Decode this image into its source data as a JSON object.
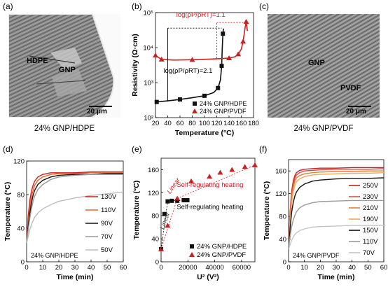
{
  "panels": {
    "a": {
      "label": "(a)",
      "scale_bar": "20 μm",
      "tags": [
        "HDPE",
        "GNP"
      ],
      "caption": "24% GNP/HDPE"
    },
    "b": {
      "label": "(b)"
    },
    "c": {
      "label": "(c)",
      "scale_bar": "20 μm",
      "tags": [
        "GNP",
        "PVDF"
      ],
      "caption": "24% GNP/PVDF"
    },
    "d": {
      "label": "(d)"
    },
    "e": {
      "label": "(e)"
    },
    "f": {
      "label": "(f)"
    }
  },
  "colors": {
    "black": "#111111",
    "red": "#cc1f1f"
  },
  "chart_data": [
    {
      "id": "b",
      "type": "line",
      "xlabel": "Temperature (°C)",
      "ylabel": "Resistivity (Ω·cm)",
      "xlim": [
        20,
        180
      ],
      "xticks": [
        20,
        40,
        60,
        80,
        100,
        120,
        140,
        160,
        180
      ],
      "ylim": [
        100,
        100000
      ],
      "yscale": "log",
      "yticks": [
        "10²",
        "10³",
        "10⁴",
        "10⁵"
      ],
      "annotations": [
        "log(ρP/ρRT)=1.1",
        "log(ρP/ρRT)=2.1"
      ],
      "legend": "bottom-right",
      "series": [
        {
          "name": "24% GNP/HDPE",
          "color": "#111111",
          "marker": "square",
          "x": [
            22,
            40,
            60,
            80,
            100,
            115,
            122,
            126,
            128,
            129,
            130,
            131
          ],
          "y": [
            280,
            300,
            330,
            370,
            420,
            520,
            700,
            1200,
            3000,
            10000,
            25000,
            35000
          ]
        },
        {
          "name": "24% GNP/PVDF",
          "color": "#cc1f1f",
          "marker": "triangle",
          "x": [
            20,
            25,
            30,
            50,
            80,
            110,
            140,
            150,
            155,
            160,
            163,
            166,
            168,
            170
          ],
          "y": [
            6000,
            5200,
            4600,
            4400,
            4500,
            4700,
            5000,
            5500,
            6500,
            9000,
            15000,
            35000,
            55000,
            30000
          ]
        }
      ]
    },
    {
      "id": "d",
      "type": "line",
      "xlabel": "Time (min)",
      "ylabel": "Temperature (°C)",
      "xlim": [
        0,
        60
      ],
      "xticks": [
        0,
        10,
        20,
        30,
        40,
        50,
        60
      ],
      "ylim": [
        0,
        120
      ],
      "yticks": [
        0,
        40,
        80,
        120
      ],
      "note": "24% GNP/HDPE",
      "legend": "right",
      "series": [
        {
          "name": "130V",
          "color": "#cc1f1f",
          "x": [
            0,
            1,
            2,
            3,
            4,
            5,
            7,
            10,
            15,
            20,
            30,
            40,
            50,
            60
          ],
          "y": [
            22,
            55,
            73,
            84,
            91,
            96,
            101,
            104,
            106,
            106,
            106,
            107,
            107,
            107
          ]
        },
        {
          "name": "110V",
          "color": "#e8642a",
          "x": [
            0,
            1,
            2,
            3,
            4,
            5,
            7,
            10,
            15,
            20,
            30,
            40,
            50,
            60
          ],
          "y": [
            22,
            48,
            65,
            77,
            85,
            91,
            97,
            101,
            104,
            105,
            105,
            106,
            106,
            106
          ]
        },
        {
          "name": "90V",
          "color": "#111111",
          "x": [
            0,
            1,
            2,
            3,
            4,
            5,
            7,
            10,
            15,
            20,
            30,
            40,
            50,
            60
          ],
          "y": [
            22,
            42,
            58,
            70,
            79,
            85,
            92,
            97,
            101,
            103,
            104,
            104,
            105,
            105
          ]
        },
        {
          "name": "70V",
          "color": "#9a9a9a",
          "x": [
            0,
            1,
            2,
            3,
            4,
            5,
            7,
            10,
            15,
            20,
            30,
            40,
            50,
            60
          ],
          "y": [
            22,
            38,
            52,
            63,
            72,
            78,
            86,
            92,
            98,
            101,
            103,
            104,
            104,
            104
          ]
        },
        {
          "name": "50V",
          "color": "#bdbdbd",
          "x": [
            0,
            1,
            2,
            3,
            4,
            5,
            7,
            10,
            15,
            20,
            30,
            40,
            50,
            60
          ],
          "y": [
            22,
            30,
            38,
            44,
            49,
            53,
            58,
            63,
            68,
            72,
            76,
            79,
            81,
            83
          ]
        }
      ]
    },
    {
      "id": "e",
      "type": "scatter",
      "xlabel": "U² (V²)",
      "ylabel": "Temperature (°C)",
      "xlim": [
        0,
        70000
      ],
      "xticks": [
        0,
        20000,
        40000,
        60000
      ],
      "ylim": [
        0,
        180
      ],
      "yticks": [
        0,
        40,
        80,
        120,
        160
      ],
      "annotations": [
        "Linear",
        "Linear",
        "Self-regulating heating",
        "Self-regulating heating"
      ],
      "legend": "bottom-right",
      "series": [
        {
          "name": "24% GNP/HDPE",
          "color": "#111111",
          "marker": "square",
          "x": [
            0,
            2500,
            4900,
            8100,
            12100,
            16900,
            19600
          ],
          "y": [
            22,
            83,
            105,
            106,
            106,
            107,
            107
          ]
        },
        {
          "name": "24% GNP/PVDF",
          "color": "#cc1f1f",
          "marker": "triangle",
          "x": [
            0,
            4900,
            12100,
            22500,
            36100,
            44100,
            52900,
            62500,
            70000
          ],
          "y": [
            22,
            63,
            110,
            140,
            148,
            155,
            160,
            165,
            168
          ]
        }
      ]
    },
    {
      "id": "f",
      "type": "line",
      "xlabel": "Time (min)",
      "ylabel": "Temperature (°C)",
      "xlim": [
        0,
        60
      ],
      "xticks": [
        0,
        10,
        20,
        30,
        40,
        50,
        60
      ],
      "ylim": [
        0,
        180
      ],
      "yticks": [
        0,
        40,
        80,
        120,
        160
      ],
      "note": "24% GNP/PVDF",
      "legend": "right",
      "series": [
        {
          "name": "250V",
          "color": "#cc1f1f",
          "x": [
            0,
            1,
            2,
            3,
            4,
            5,
            7,
            10,
            15,
            20,
            30,
            40,
            50,
            60
          ],
          "y": [
            22,
            90,
            125,
            143,
            152,
            157,
            161,
            163,
            164,
            165,
            165,
            166,
            166,
            166
          ]
        },
        {
          "name": "230V",
          "color": "#d94b4b",
          "x": [
            0,
            1,
            2,
            3,
            4,
            5,
            7,
            10,
            15,
            20,
            30,
            40,
            50,
            60
          ],
          "y": [
            22,
            85,
            120,
            138,
            148,
            153,
            157,
            160,
            161,
            162,
            163,
            163,
            163,
            164
          ]
        },
        {
          "name": "210V",
          "color": "#e87e2f",
          "x": [
            0,
            1,
            2,
            3,
            4,
            5,
            7,
            10,
            15,
            20,
            30,
            40,
            50,
            60
          ],
          "y": [
            22,
            80,
            114,
            132,
            142,
            148,
            152,
            155,
            157,
            158,
            159,
            159,
            160,
            160
          ]
        },
        {
          "name": "190V",
          "color": "#f0a860",
          "x": [
            0,
            1,
            2,
            3,
            4,
            5,
            7,
            10,
            15,
            20,
            30,
            40,
            50,
            60
          ],
          "y": [
            22,
            72,
            105,
            124,
            135,
            141,
            146,
            150,
            153,
            154,
            155,
            156,
            156,
            157
          ]
        },
        {
          "name": "150V",
          "color": "#111111",
          "x": [
            0,
            1,
            2,
            3,
            4,
            5,
            7,
            10,
            15,
            20,
            30,
            40,
            50,
            60
          ],
          "y": [
            22,
            60,
            88,
            105,
            116,
            123,
            131,
            137,
            142,
            144,
            146,
            147,
            147,
            148
          ]
        },
        {
          "name": "110V",
          "color": "#9a9a9a",
          "x": [
            0,
            1,
            2,
            3,
            4,
            5,
            7,
            10,
            15,
            20,
            30,
            40,
            50,
            60
          ],
          "y": [
            22,
            45,
            62,
            74,
            82,
            88,
            95,
            100,
            104,
            106,
            107,
            108,
            108,
            108
          ]
        },
        {
          "name": "70V",
          "color": "#c4c4c4",
          "x": [
            0,
            1,
            2,
            3,
            4,
            5,
            7,
            10,
            15,
            20,
            30,
            40,
            50,
            60
          ],
          "y": [
            22,
            30,
            38,
            44,
            48,
            51,
            55,
            58,
            61,
            62,
            63,
            64,
            64,
            64
          ]
        }
      ]
    }
  ]
}
